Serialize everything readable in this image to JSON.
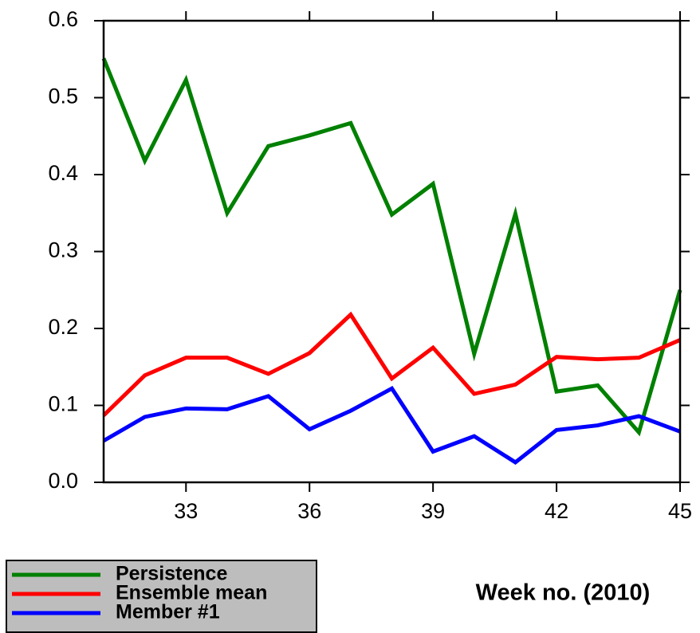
{
  "chart_data": {
    "type": "line",
    "x": [
      31,
      32,
      33,
      34,
      35,
      36,
      37,
      38,
      39,
      40,
      41,
      42,
      43,
      44,
      45
    ],
    "series": [
      {
        "name": "Persistence",
        "color": "#008000",
        "values": [
          0.551,
          0.418,
          0.523,
          0.35,
          0.437,
          0.451,
          0.467,
          0.348,
          0.388,
          0.167,
          0.349,
          0.118,
          0.126,
          0.065,
          0.25
        ]
      },
      {
        "name": "Ensemble mean",
        "color": "#ff0000",
        "values": [
          0.087,
          0.139,
          0.162,
          0.162,
          0.141,
          0.168,
          0.218,
          0.135,
          0.175,
          0.115,
          0.127,
          0.163,
          0.16,
          0.162,
          0.185
        ]
      },
      {
        "name": "Member #1",
        "color": "#0000ff",
        "values": [
          0.054,
          0.085,
          0.096,
          0.095,
          0.112,
          0.069,
          0.093,
          0.122,
          0.04,
          0.06,
          0.026,
          0.068,
          0.074,
          0.086,
          0.066
        ]
      }
    ],
    "xlabel": "Week no. (2010)",
    "xlim": [
      31,
      45
    ],
    "xticks": [
      33,
      36,
      39,
      42,
      45
    ],
    "ylim": [
      0,
      0.6
    ],
    "yticks": [
      {
        "value": 0,
        "label": "0.0"
      },
      0.1,
      0.2,
      0.3,
      0.4,
      0.5,
      0.6
    ],
    "legend": "lower-left"
  }
}
